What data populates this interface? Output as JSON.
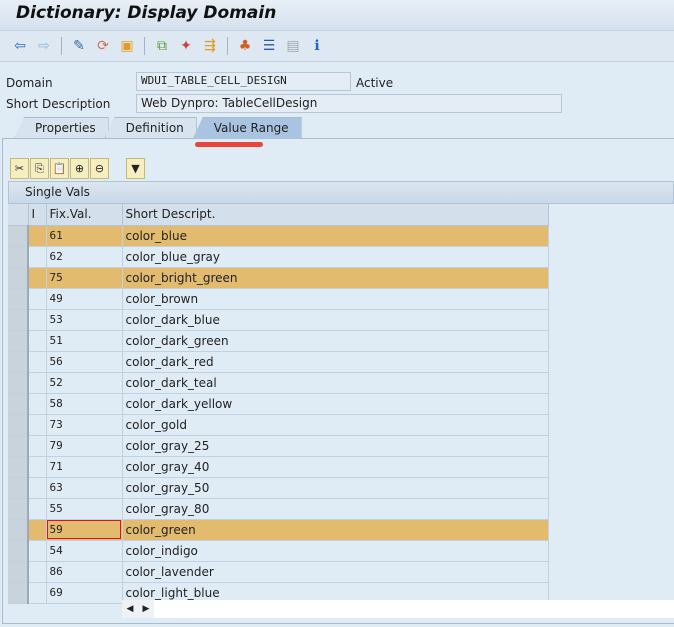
{
  "title": "Dictionary: Display Domain",
  "toolbar": [
    {
      "icon": "back-icon",
      "glyph": "⇦",
      "color": "#2a6db5"
    },
    {
      "icon": "forward-icon",
      "glyph": "⇨",
      "color": "#9ab8d6"
    },
    {
      "sep": true
    },
    {
      "icon": "display-change-icon",
      "glyph": "✎",
      "color": "#3a6aa0"
    },
    {
      "icon": "active-inactive-icon",
      "glyph": "⟳",
      "color": "#d0705a"
    },
    {
      "icon": "other-object-icon",
      "glyph": "▣",
      "color": "#e89a20"
    },
    {
      "sep": true
    },
    {
      "icon": "where-used-icon",
      "glyph": "⧉",
      "color": "#5a9a30"
    },
    {
      "icon": "magic-wand-icon",
      "glyph": "✦",
      "color": "#d04040"
    },
    {
      "icon": "navigation-icon",
      "glyph": "⇶",
      "color": "#e89a20"
    },
    {
      "sep": true
    },
    {
      "icon": "hierarchy-icon",
      "glyph": "♣",
      "color": "#d06020"
    },
    {
      "icon": "align-icon",
      "glyph": "☰",
      "color": "#2a5aa0"
    },
    {
      "icon": "list-icon",
      "glyph": "▤",
      "color": "#9aa8b5"
    },
    {
      "icon": "info-icon",
      "glyph": "ℹ",
      "color": "#1a6ac0"
    }
  ],
  "form": {
    "domain_label": "Domain",
    "domain_value": "WDUI_TABLE_CELL_DESIGN",
    "status": "Active",
    "short_desc_label": "Short Description",
    "short_desc_value": "Web Dynpro: TableCellDesign"
  },
  "tabs": [
    {
      "label": "Properties"
    },
    {
      "label": "Definition"
    },
    {
      "label": "Value Range",
      "active": true
    }
  ],
  "table_toolbar": [
    {
      "icon": "cut-icon",
      "glyph": "✂"
    },
    {
      "icon": "copy-icon",
      "glyph": "⎘"
    },
    {
      "icon": "paste-icon",
      "glyph": "📋"
    },
    {
      "icon": "insert-row-icon",
      "glyph": "⊕"
    },
    {
      "icon": "delete-row-icon",
      "glyph": "⊖"
    },
    {
      "icon": "filter-icon",
      "glyph": "▼"
    }
  ],
  "table": {
    "caption": "Single Vals",
    "columns": [
      "I",
      "Fix.Val.",
      "Short Descript."
    ],
    "rows": [
      {
        "val": "61",
        "desc": "color_blue",
        "highlight": true
      },
      {
        "val": "62",
        "desc": "color_blue_gray"
      },
      {
        "val": "75",
        "desc": "color_bright_green",
        "highlight": true
      },
      {
        "val": "49",
        "desc": "color_brown"
      },
      {
        "val": "53",
        "desc": "color_dark_blue"
      },
      {
        "val": "51",
        "desc": "color_dark_green"
      },
      {
        "val": "56",
        "desc": "color_dark_red"
      },
      {
        "val": "52",
        "desc": "color_dark_teal"
      },
      {
        "val": "58",
        "desc": "color_dark_yellow"
      },
      {
        "val": "73",
        "desc": "color_gold"
      },
      {
        "val": "79",
        "desc": "color_gray_25"
      },
      {
        "val": "71",
        "desc": "color_gray_40"
      },
      {
        "val": "63",
        "desc": "color_gray_50"
      },
      {
        "val": "55",
        "desc": "color_gray_80"
      },
      {
        "val": "59",
        "desc": "color_green",
        "highlight": true,
        "focus": true
      },
      {
        "val": "54",
        "desc": "color_indigo"
      },
      {
        "val": "86",
        "desc": "color_lavender"
      },
      {
        "val": "69",
        "desc": "color_light_blue"
      }
    ]
  },
  "scroll": {
    "left": "◀",
    "right": "▶"
  }
}
